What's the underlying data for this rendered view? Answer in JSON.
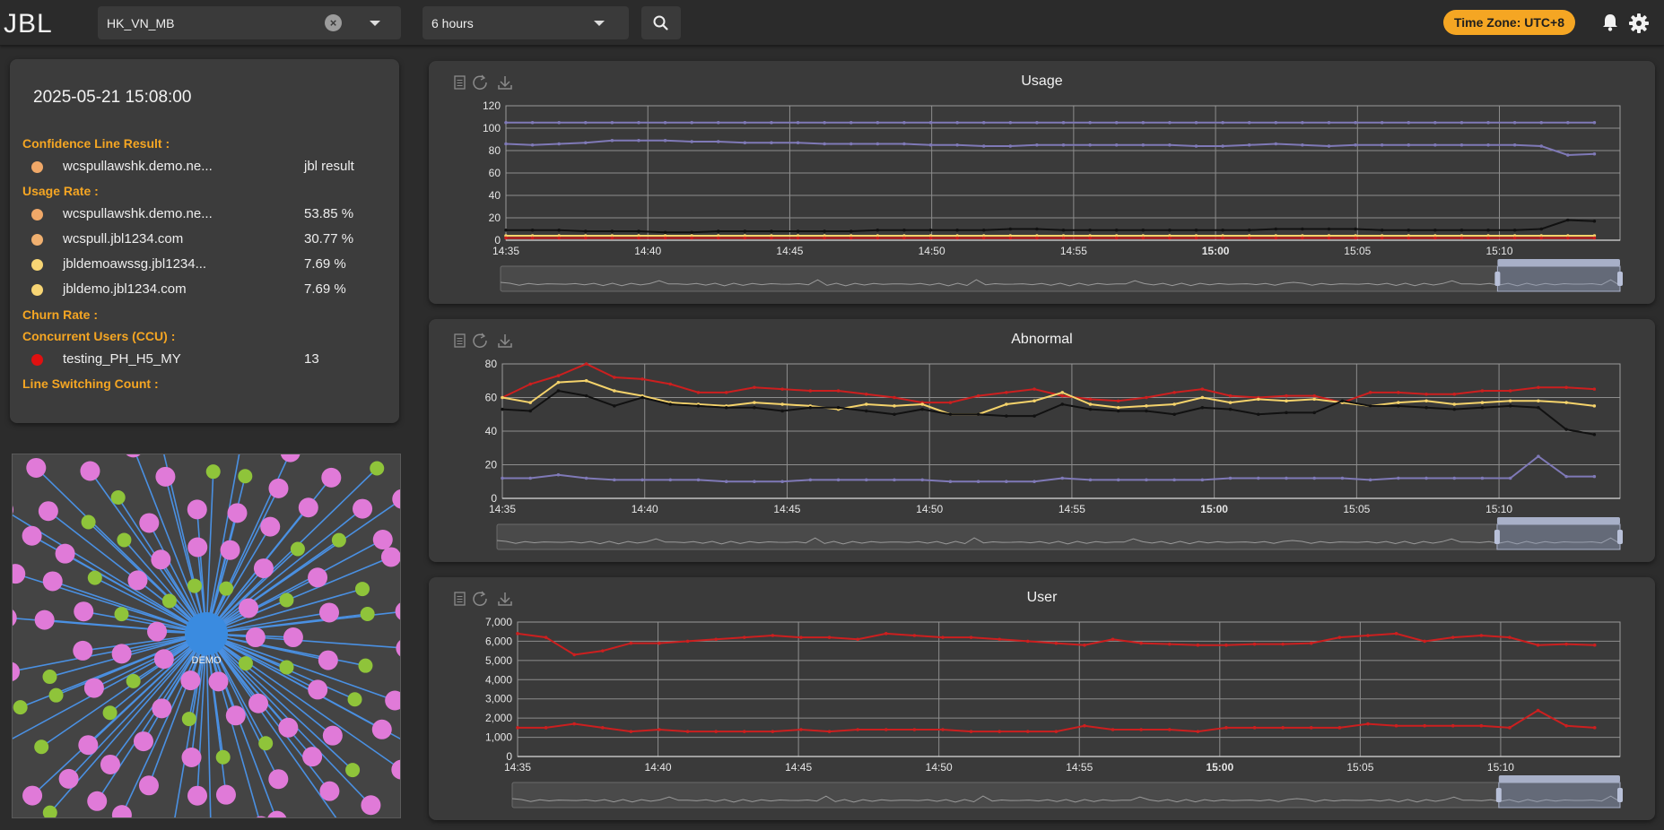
{
  "header": {
    "logo": "JBL",
    "line_select": {
      "value": "HK_VN_MB"
    },
    "range_select": {
      "value": "6 hours"
    },
    "timezone": "Time Zone: UTC+8"
  },
  "info": {
    "timestamp": "2025-05-21 15:08:00",
    "sections": {
      "confidence": "Confidence Line Result :",
      "usage": "Usage Rate :",
      "churn": "Churn Rate :",
      "ccu": "Concurrent Users (CCU) :",
      "switching": "Line Switching Count :"
    },
    "confidence_rows": [
      {
        "name": "wcspullawshk.demo.ne...",
        "value": "jbl result",
        "color": "#f0a868"
      }
    ],
    "usage_rows": [
      {
        "name": "wcspullawshk.demo.ne...",
        "value": "53.85 %",
        "color": "#f0a868"
      },
      {
        "name": "wcspull.jbl1234.com",
        "value": "30.77 %",
        "color": "#f0b070"
      },
      {
        "name": "jbldemoawssg.jbl1234...",
        "value": "7.69 %",
        "color": "#f7d574"
      },
      {
        "name": "jbldemo.jbl1234.com",
        "value": "7.69 %",
        "color": "#f7d574"
      }
    ],
    "ccu_rows": [
      {
        "name": "testing_PH_H5_MY",
        "value": "13",
        "color": "#e01010"
      }
    ]
  },
  "graph": {
    "center_label": "DEMO"
  },
  "colors": {
    "accent": "#f5a623",
    "red": "#cc1f1f",
    "yellow": "#f5d36b",
    "black": "#111111",
    "purple": "#7f79b7"
  },
  "charts": {
    "usage": {
      "title": "Usage",
      "chart_data": {
        "type": "line",
        "x_labels": [
          "14:35",
          "14:40",
          "14:45",
          "14:50",
          "14:55",
          "15:00",
          "15:05",
          "15:10"
        ],
        "y_ticks": [
          "0",
          "20",
          "40",
          "60",
          "80",
          "100",
          "120"
        ],
        "ylim": [
          0,
          120
        ],
        "series": [
          {
            "color": "#7f79b7",
            "values": [
              105,
              105,
              105,
              105,
              105,
              105,
              105,
              105,
              105,
              105,
              105,
              105,
              105,
              105,
              105,
              105,
              105,
              105,
              105,
              105,
              105,
              105,
              105,
              105,
              105,
              105,
              105,
              105,
              105,
              105,
              105,
              105,
              105,
              105,
              105,
              105,
              105,
              105,
              105,
              105,
              105,
              105
            ]
          },
          {
            "color": "#7f79b7",
            "values": [
              86,
              85,
              86,
              87,
              89,
              89,
              89,
              88,
              88,
              87,
              87,
              87,
              86,
              86,
              86,
              86,
              85,
              85,
              84,
              84,
              85,
              85,
              85,
              85,
              85,
              85,
              84,
              84,
              85,
              86,
              85,
              84,
              85,
              85,
              85,
              85,
              85,
              85,
              85,
              84,
              76,
              77
            ]
          },
          {
            "color": "#111111",
            "values": [
              9,
              9,
              9,
              8,
              8,
              8,
              7,
              7,
              8,
              8,
              8,
              8,
              8,
              8,
              9,
              9,
              9,
              9,
              9,
              10,
              10,
              9,
              9,
              9,
              9,
              9,
              9,
              9,
              9,
              10,
              10,
              10,
              10,
              9,
              9,
              9,
              9,
              9,
              9,
              10,
              18,
              17
            ]
          },
          {
            "color": "#f5d36b",
            "values": [
              4,
              4,
              4,
              4,
              4,
              4,
              4,
              4,
              4,
              4,
              4,
              4,
              4,
              4,
              4,
              4,
              4,
              4,
              4,
              4,
              4,
              4,
              4,
              4,
              4,
              4,
              4,
              4,
              4,
              4,
              4,
              4,
              4,
              4,
              4,
              4,
              4,
              4,
              4,
              4,
              4,
              4
            ]
          },
          {
            "color": "#cc1f1f",
            "values": [
              2,
              2,
              2,
              2,
              2,
              2,
              2,
              2,
              2,
              2,
              2,
              2,
              2,
              2,
              2,
              2,
              2,
              2,
              2,
              2,
              2,
              2,
              2,
              2,
              2,
              2,
              2,
              2,
              2,
              2,
              2,
              2,
              2,
              2,
              2,
              2,
              2,
              2,
              2,
              2,
              2,
              2
            ]
          }
        ]
      }
    },
    "abnormal": {
      "title": "Abnormal",
      "chart_data": {
        "type": "line",
        "x_labels": [
          "14:35",
          "14:40",
          "14:45",
          "14:50",
          "14:55",
          "15:00",
          "15:05",
          "15:10"
        ],
        "y_ticks": [
          "0",
          "20",
          "40",
          "60",
          "80"
        ],
        "ylim": [
          0,
          80
        ],
        "series": [
          {
            "color": "#cc1f1f",
            "values": [
              60,
              68,
              73,
              80,
              72,
              71,
              68,
              63,
              63,
              66,
              65,
              64,
              64,
              62,
              60,
              57,
              57,
              61,
              63,
              65,
              61,
              59,
              58,
              60,
              63,
              65,
              61,
              60,
              61,
              61,
              57,
              63,
              63,
              62,
              62,
              64,
              64,
              66,
              66,
              65
            ]
          },
          {
            "color": "#f5d36b",
            "values": [
              60,
              57,
              69,
              70,
              64,
              61,
              57,
              56,
              55,
              57,
              56,
              55,
              53,
              56,
              55,
              56,
              50,
              50,
              56,
              58,
              63,
              56,
              54,
              55,
              56,
              60,
              57,
              59,
              58,
              59,
              57,
              55,
              57,
              58,
              56,
              57,
              58,
              58,
              57,
              55
            ]
          },
          {
            "color": "#111111",
            "values": [
              53,
              52,
              64,
              61,
              55,
              60,
              56,
              55,
              54,
              54,
              52,
              54,
              54,
              52,
              50,
              53,
              50,
              50,
              49,
              49,
              56,
              53,
              52,
              52,
              50,
              54,
              53,
              50,
              51,
              51,
              58,
              55,
              55,
              54,
              53,
              54,
              55,
              54,
              41,
              38
            ]
          },
          {
            "color": "#7f79b7",
            "values": [
              12,
              12,
              14,
              12,
              11,
              11,
              11,
              11,
              10,
              10,
              10,
              11,
              11,
              11,
              11,
              11,
              10,
              10,
              10,
              10,
              12,
              11,
              11,
              11,
              11,
              11,
              12,
              12,
              12,
              12,
              12,
              11,
              12,
              12,
              12,
              12,
              12,
              25,
              13,
              13
            ]
          }
        ]
      }
    },
    "user": {
      "title": "User",
      "chart_data": {
        "type": "line",
        "x_labels": [
          "14:35",
          "14:40",
          "14:45",
          "14:50",
          "14:55",
          "15:00",
          "15:05",
          "15:10"
        ],
        "y_ticks": [
          "0",
          "1,000",
          "2,000",
          "3,000",
          "4,000",
          "5,000",
          "6,000",
          "7,000"
        ],
        "ylim": [
          0,
          7000
        ],
        "series": [
          {
            "color": "#cc1f1f",
            "values": [
              6400,
              6200,
              5300,
              5500,
              5900,
              5900,
              6000,
              6100,
              6200,
              6300,
              6200,
              6200,
              6100,
              6400,
              6300,
              6200,
              6200,
              6100,
              6000,
              5900,
              5800,
              6100,
              5900,
              5850,
              5800,
              5800,
              5850,
              5850,
              5900,
              6200,
              6300,
              6400,
              6000,
              6200,
              6300,
              6200,
              5800,
              5850,
              5800
            ]
          },
          {
            "color": "#cc1f1f",
            "values": [
              1500,
              1500,
              1700,
              1500,
              1300,
              1400,
              1300,
              1300,
              1300,
              1300,
              1400,
              1300,
              1400,
              1400,
              1400,
              1400,
              1300,
              1300,
              1300,
              1300,
              1600,
              1400,
              1400,
              1400,
              1300,
              1500,
              1500,
              1500,
              1500,
              1500,
              1700,
              1600,
              1600,
              1600,
              1600,
              1500,
              2400,
              1600,
              1500
            ]
          }
        ]
      }
    }
  }
}
